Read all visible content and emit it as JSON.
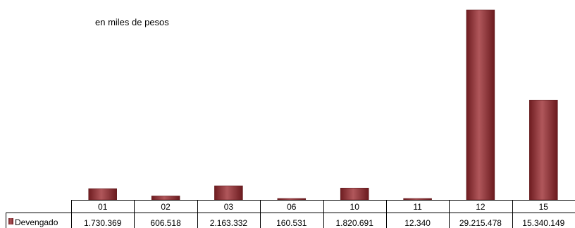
{
  "chart_data": {
    "type": "bar",
    "subtitle": "en miles de pesos",
    "categories": [
      "01",
      "02",
      "03",
      "06",
      "10",
      "11",
      "12",
      "15"
    ],
    "series": [
      {
        "name": "Devengado",
        "values": [
          1730369,
          606518,
          2163332,
          160531,
          1820691,
          12340,
          29215478,
          15340149
        ],
        "labels": [
          "1.730.369",
          "606.518",
          "2.163.332",
          "160.531",
          "1.820.691",
          "12.340",
          "29.215.478",
          "15.340.149"
        ],
        "color": "#8b2a2e"
      }
    ],
    "ylim": [
      0,
      29215478
    ],
    "grid": false,
    "legend": "table-left",
    "data_table": true
  }
}
